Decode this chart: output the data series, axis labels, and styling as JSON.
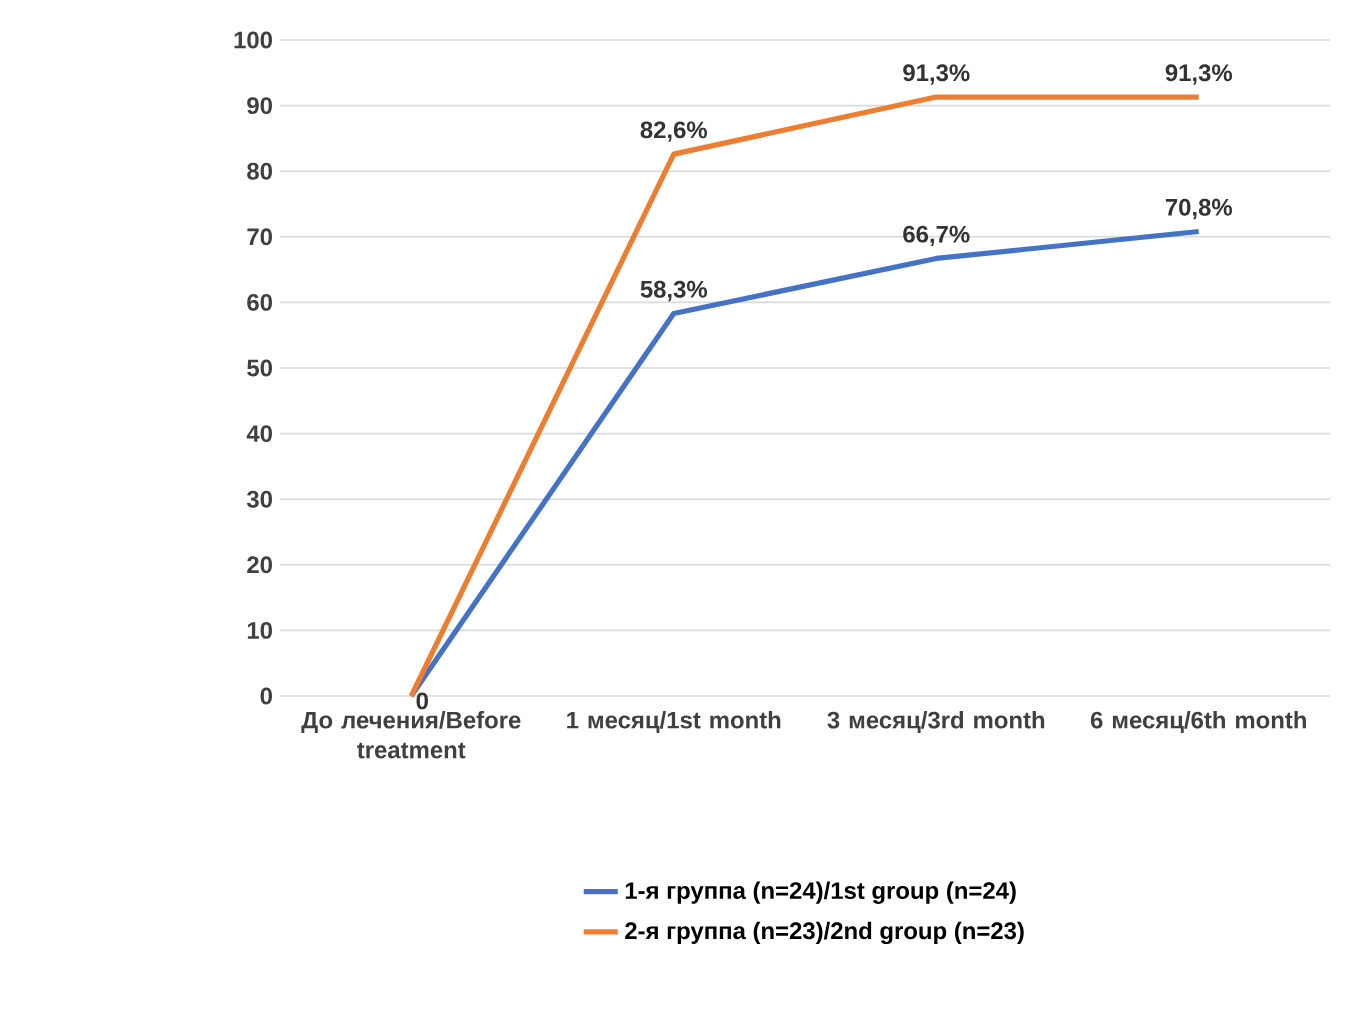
{
  "chart_data": {
    "type": "line",
    "categories": [
      "До лечения/Before treatment",
      "1 месяц/1st month",
      "3 месяц/3rd month",
      "6 месяц/6th month"
    ],
    "series": [
      {
        "name": "1-я группа (n=24)/1st group (n=24)",
        "color": "#4472c4",
        "values": [
          0,
          58.3,
          66.7,
          70.8
        ],
        "value_labels": [
          "0",
          "58,3%",
          "66,7%",
          "70,8%"
        ]
      },
      {
        "name": "2-я группа (n=23)/2nd group (n=23)",
        "color": "#ed7d31",
        "values": [
          0,
          82.6,
          91.3,
          91.3
        ],
        "value_labels": [
          null,
          "82,6%",
          "91,3%",
          "91,3%"
        ]
      }
    ],
    "ylim": [
      0,
      100
    ],
    "yticks": [
      0,
      10,
      20,
      30,
      40,
      50,
      60,
      70,
      80,
      90,
      100
    ],
    "grid": "y",
    "legend": "bottom",
    "marker": "none",
    "line_style": "solid"
  }
}
